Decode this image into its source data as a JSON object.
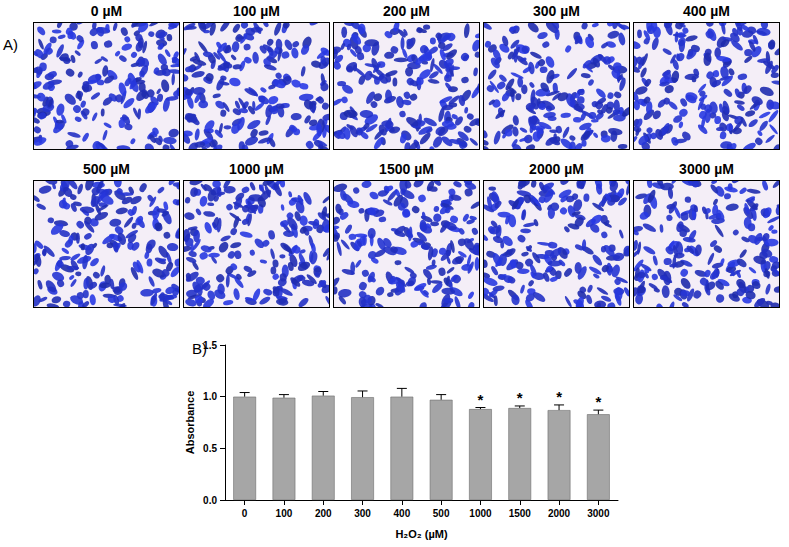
{
  "figure": {
    "panel_a": {
      "label": "A)",
      "titles": [
        "0 µM",
        "100 µM",
        "200 µM",
        "300 µM",
        "400 µM",
        "500 µM",
        "1000 µM",
        "1500 µM",
        "2000 µM",
        "3000 µM"
      ]
    },
    "panel_b_label": "B)"
  },
  "chart_data": {
    "type": "bar",
    "x_label": "H₂O₂ (µM)",
    "y_label": "Absorbance",
    "categories": [
      "0",
      "100",
      "200",
      "300",
      "400",
      "500",
      "1000",
      "1500",
      "2000",
      "3000"
    ],
    "values": [
      1.0,
      0.99,
      1.01,
      0.995,
      1.0,
      0.97,
      0.88,
      0.89,
      0.87,
      0.83
    ],
    "errors": [
      0.04,
      0.03,
      0.04,
      0.06,
      0.08,
      0.05,
      0.015,
      0.02,
      0.05,
      0.04
    ],
    "annotations": [
      null,
      null,
      null,
      null,
      null,
      null,
      "*",
      "*",
      "*",
      "*"
    ],
    "color": "#a6a6a6",
    "ylim": [
      0,
      1.5
    ],
    "yticks": [
      {
        "value": 0,
        "label": "0.0"
      },
      0.5,
      {
        "value": 1,
        "label": "1.0"
      },
      {
        "value": 1.5,
        "label": "1.5"
      }
    ],
    "grid": false
  }
}
